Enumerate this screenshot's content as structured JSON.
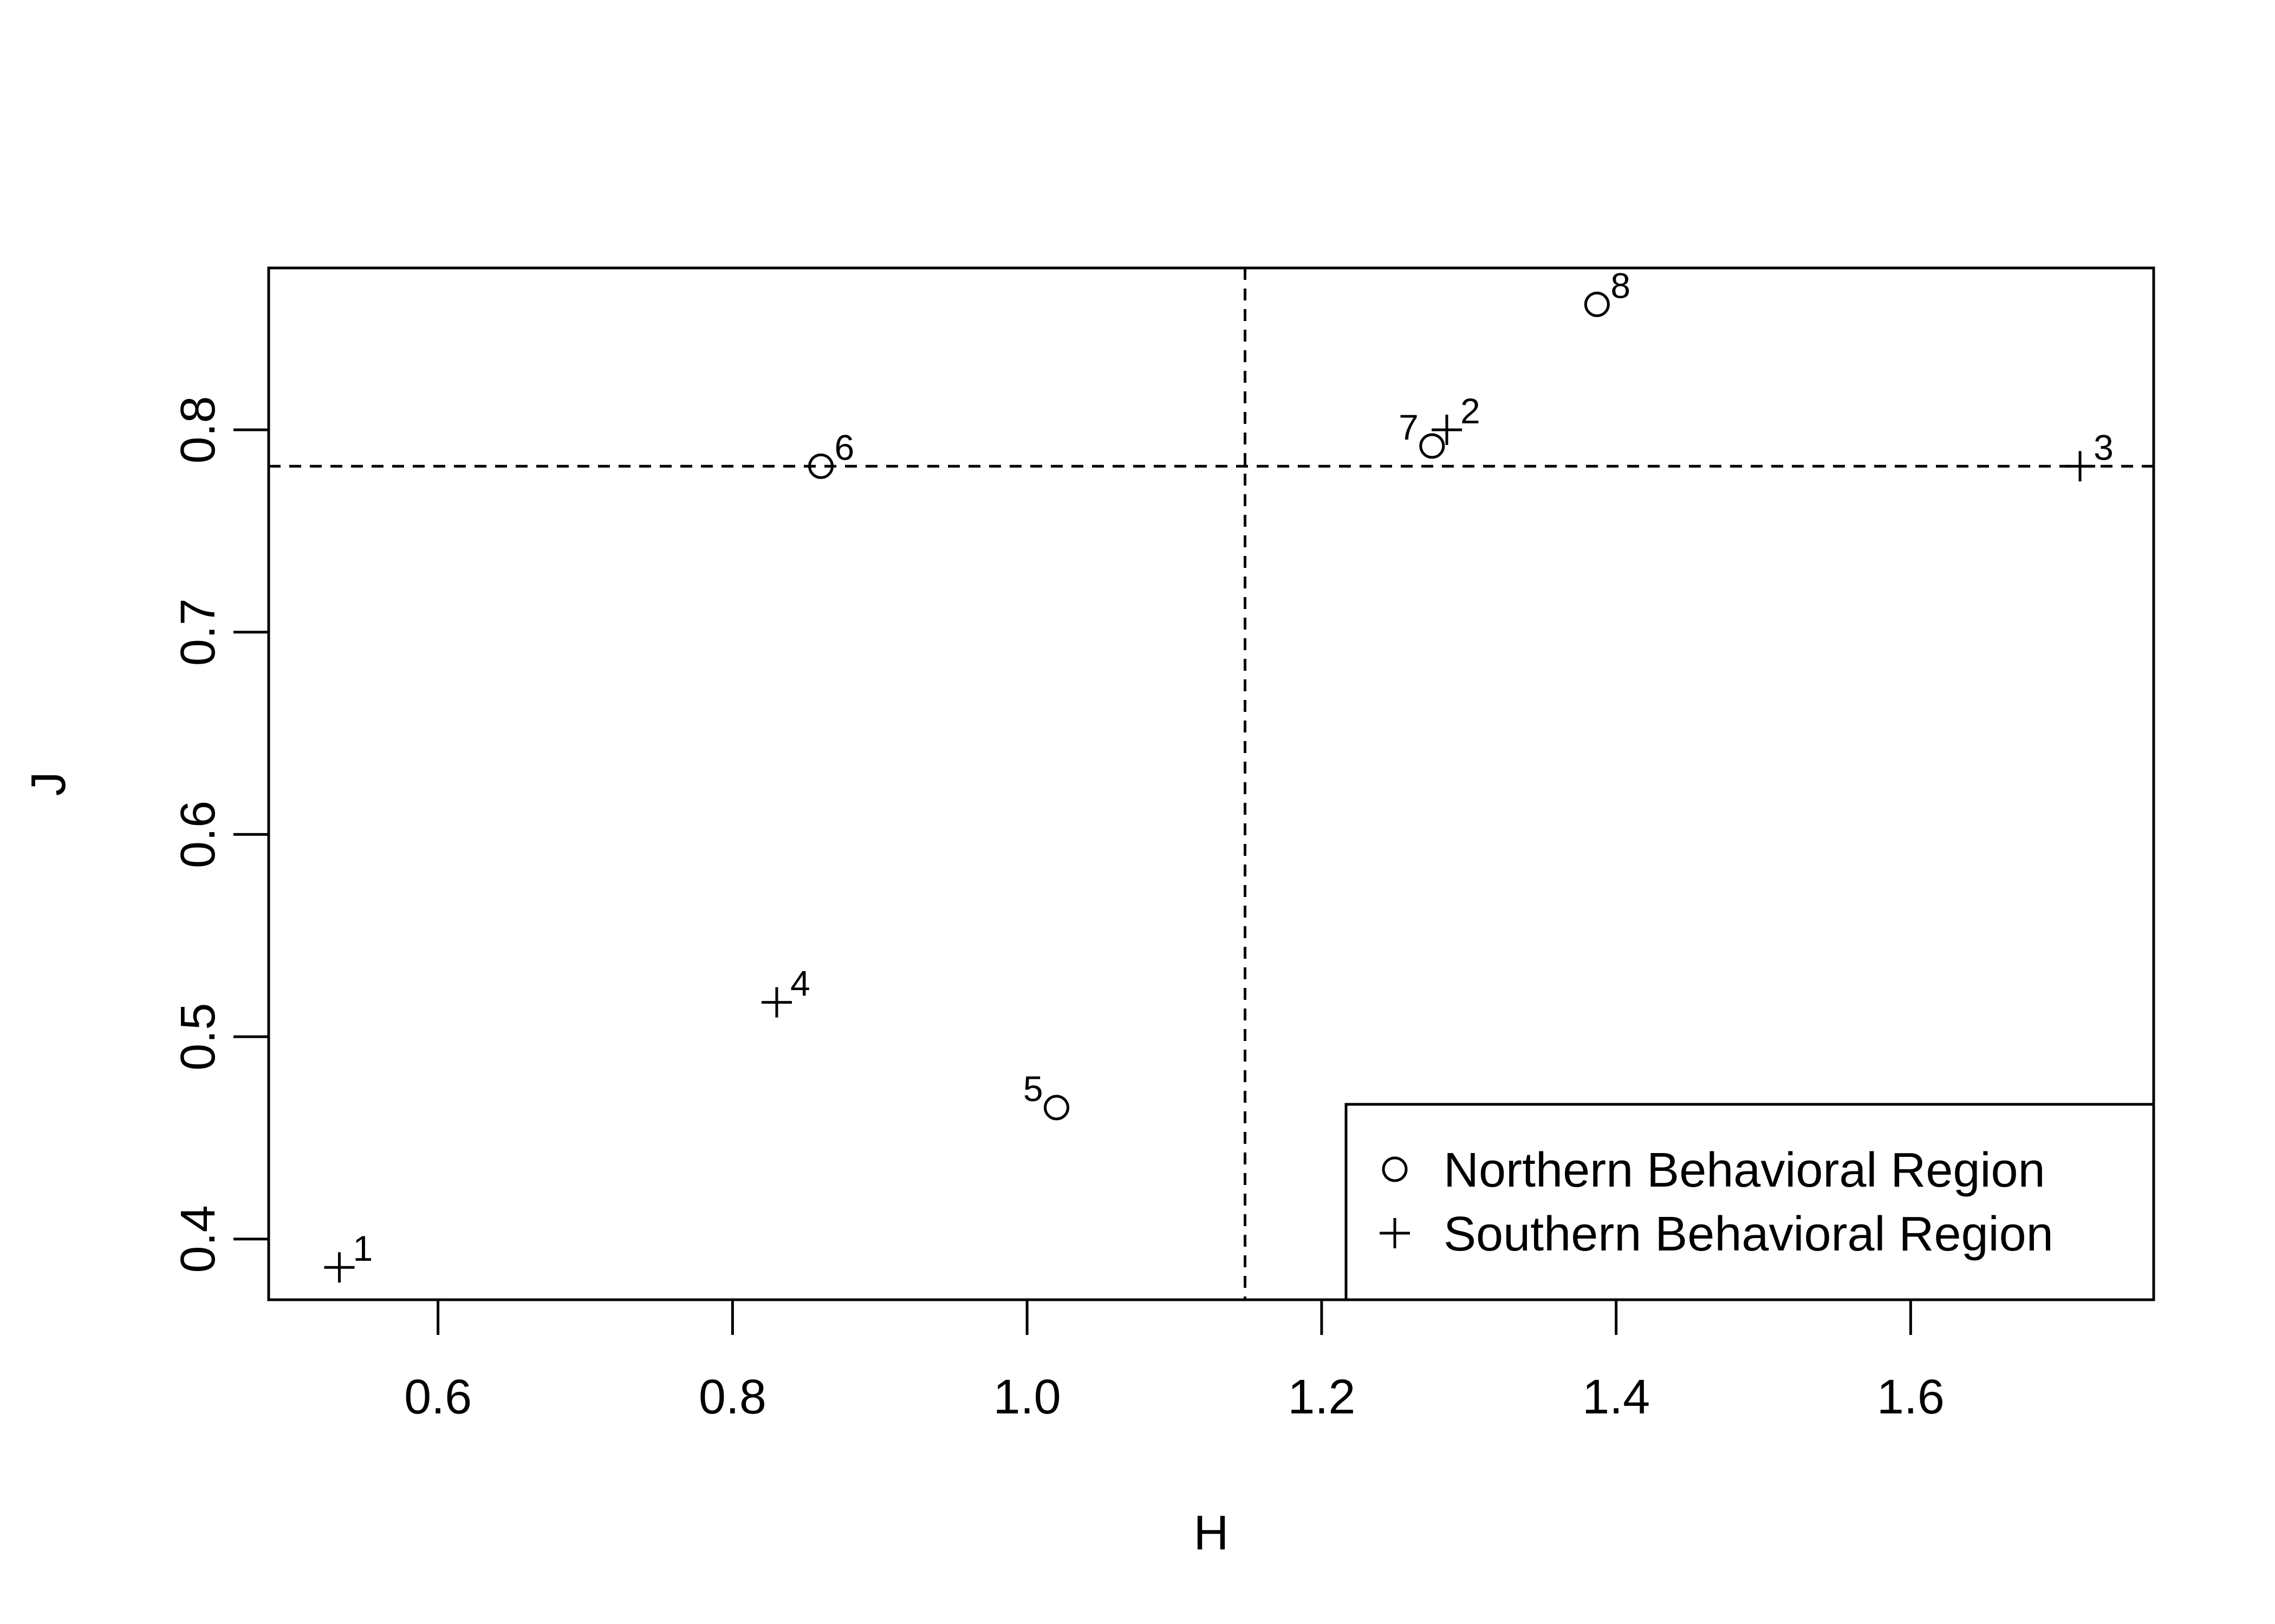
{
  "chart_data": {
    "type": "scatter",
    "title": "",
    "xlabel": "H",
    "ylabel": "J",
    "xlim": [
      0.485,
      1.765
    ],
    "ylim": [
      0.37,
      0.88
    ],
    "xticks": [
      0.6,
      0.8,
      1.0,
      1.2,
      1.4,
      1.6
    ],
    "xtick_labels": [
      "0.6",
      "0.8",
      "1.0",
      "1.2",
      "1.4",
      "1.6"
    ],
    "yticks": [
      0.4,
      0.5,
      0.6,
      0.7,
      0.8
    ],
    "ytick_labels": [
      "0.4",
      "0.5",
      "0.6",
      "0.7",
      "0.8"
    ],
    "grid": false,
    "reference_lines": {
      "vertical_x": 1.148,
      "horizontal_y": 0.782,
      "style": "dashed"
    },
    "series": [
      {
        "name": "Northern Behavioral Region",
        "marker": "circle",
        "points": [
          {
            "label": "5",
            "x": 1.02,
            "y": 0.465,
            "label_side": "left"
          },
          {
            "label": "6",
            "x": 0.86,
            "y": 0.782,
            "label_side": "right"
          },
          {
            "label": "7",
            "x": 1.275,
            "y": 0.792,
            "label_side": "left"
          },
          {
            "label": "8",
            "x": 1.387,
            "y": 0.862,
            "label_side": "right"
          }
        ]
      },
      {
        "name": "Southern Behavioral Region",
        "marker": "plus",
        "points": [
          {
            "label": "1",
            "x": 0.533,
            "y": 0.386,
            "label_side": "right"
          },
          {
            "label": "2",
            "x": 1.285,
            "y": 0.8,
            "label_side": "right"
          },
          {
            "label": "3",
            "x": 1.715,
            "y": 0.782,
            "label_side": "right"
          },
          {
            "label": "4",
            "x": 0.83,
            "y": 0.517,
            "label_side": "right"
          }
        ]
      }
    ],
    "legend": {
      "position": "bottom-right",
      "entries": [
        {
          "marker": "circle",
          "text": "Northern Behavioral Region"
        },
        {
          "marker": "plus",
          "text": "Southern Behavioral Region"
        }
      ]
    }
  }
}
